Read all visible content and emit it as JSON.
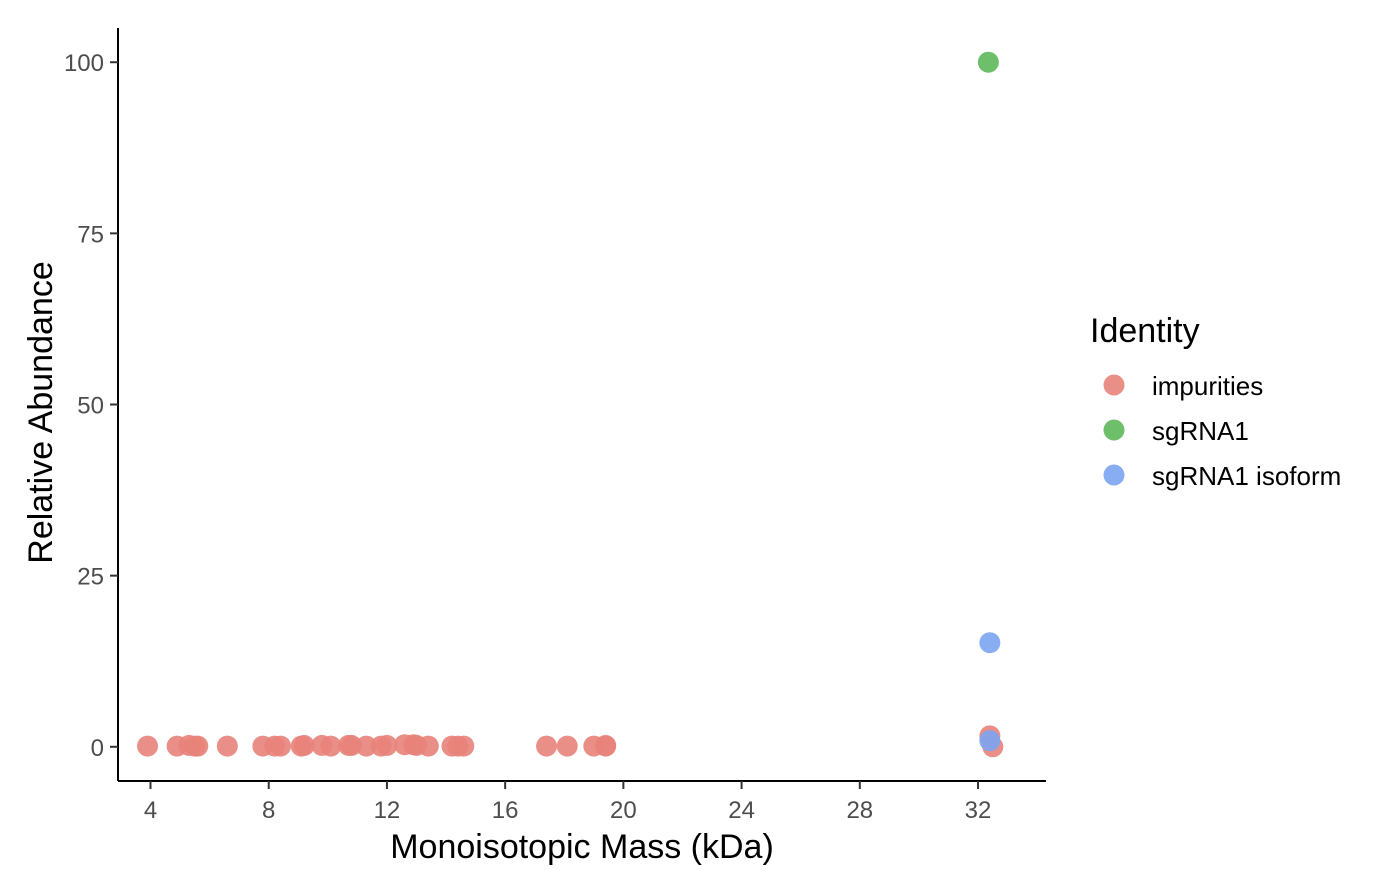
{
  "chart_data": {
    "type": "scatter",
    "title": "",
    "xlabel": "Monoisotopic Mass (kDa)",
    "ylabel": "Relative Abundance",
    "xlim": [
      2.9,
      34.3
    ],
    "ylim": [
      -5,
      105
    ],
    "x_ticks": [
      4,
      8,
      12,
      16,
      20,
      24,
      28,
      32
    ],
    "y_ticks": [
      0,
      25,
      50,
      75,
      100
    ],
    "grid": false,
    "legend": {
      "title": "Identity",
      "position": "right"
    },
    "series": [
      {
        "name": "impurities",
        "color": "#E8837A",
        "points": [
          {
            "x": 3.9,
            "y": 0.1
          },
          {
            "x": 4.9,
            "y": 0.1
          },
          {
            "x": 5.3,
            "y": 0.2
          },
          {
            "x": 5.5,
            "y": 0.1
          },
          {
            "x": 5.6,
            "y": 0.1
          },
          {
            "x": 6.6,
            "y": 0.1
          },
          {
            "x": 7.8,
            "y": 0.1
          },
          {
            "x": 8.2,
            "y": 0.1
          },
          {
            "x": 8.4,
            "y": 0.1
          },
          {
            "x": 9.1,
            "y": 0.1
          },
          {
            "x": 9.2,
            "y": 0.2
          },
          {
            "x": 9.8,
            "y": 0.2
          },
          {
            "x": 10.1,
            "y": 0.1
          },
          {
            "x": 10.7,
            "y": 0.2
          },
          {
            "x": 10.8,
            "y": 0.2
          },
          {
            "x": 11.3,
            "y": 0.1
          },
          {
            "x": 11.8,
            "y": 0.1
          },
          {
            "x": 12.0,
            "y": 0.2
          },
          {
            "x": 12.6,
            "y": 0.3
          },
          {
            "x": 12.9,
            "y": 0.3
          },
          {
            "x": 13.0,
            "y": 0.2
          },
          {
            "x": 13.4,
            "y": 0.1
          },
          {
            "x": 14.2,
            "y": 0.1
          },
          {
            "x": 14.4,
            "y": 0.1
          },
          {
            "x": 14.6,
            "y": 0.1
          },
          {
            "x": 17.4,
            "y": 0.1
          },
          {
            "x": 18.1,
            "y": 0.1
          },
          {
            "x": 19.0,
            "y": 0.1
          },
          {
            "x": 19.4,
            "y": 0.1
          },
          {
            "x": 19.4,
            "y": 0.2
          },
          {
            "x": 32.4,
            "y": 1.6
          },
          {
            "x": 32.5,
            "y": 0.0
          }
        ]
      },
      {
        "name": "sgRNA1",
        "color": "#5DB85A",
        "points": [
          {
            "x": 32.35,
            "y": 100
          }
        ]
      },
      {
        "name": "sgRNA1 isoform",
        "color": "#7CA4F2",
        "points": [
          {
            "x": 32.4,
            "y": 15.2
          },
          {
            "x": 32.4,
            "y": 0.9
          }
        ]
      }
    ]
  }
}
